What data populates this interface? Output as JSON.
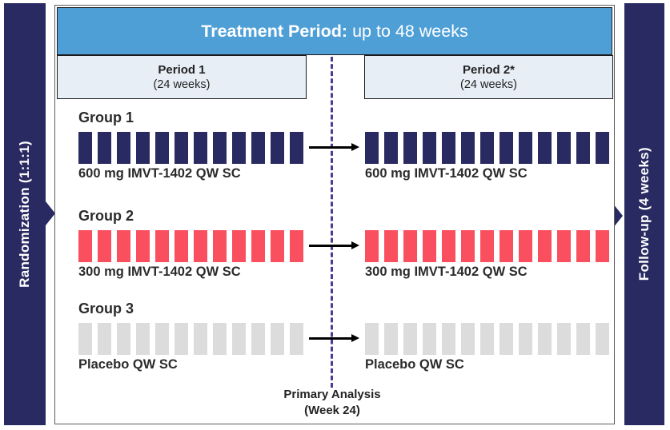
{
  "header": {
    "label_bold": "Treatment Period:",
    "label_rest": "up to 48 weeks"
  },
  "left_bar": {
    "label": "Randomization (1:1:1)"
  },
  "right_bar": {
    "label": "Follow-up (4 weeks)"
  },
  "periods": [
    {
      "name": "Period 1",
      "duration": "(24 weeks)"
    },
    {
      "name": "Period 2*",
      "duration": "(24 weeks)"
    }
  ],
  "groups": [
    {
      "name": "Group 1",
      "tick_color": "#2A2A62",
      "period1": {
        "ticks": 12,
        "label": "600 mg IMVT-1402 QW SC"
      },
      "period2": {
        "ticks": 13,
        "label": "600 mg IMVT-1402 QW SC"
      }
    },
    {
      "name": "Group 2",
      "tick_color": "#FA4F5F",
      "period1": {
        "ticks": 12,
        "label": "300 mg IMVT-1402 QW SC"
      },
      "period2": {
        "ticks": 13,
        "label": "300 mg IMVT-1402 QW SC"
      }
    },
    {
      "name": "Group 3",
      "tick_color": "#DCDCDC",
      "period1": {
        "ticks": 12,
        "label": "Placebo QW SC"
      },
      "period2": {
        "ticks": 13,
        "label": "Placebo QW SC"
      }
    }
  ],
  "primary_analysis": {
    "line1": "Primary Analysis",
    "line2": "(Week 24)"
  },
  "colors": {
    "navy": "#292A62",
    "red": "#FA4F5F",
    "light_gray": "#DCDCDC",
    "header_blue": "#4F9FD7",
    "period_fill": "#E8EEF6",
    "dashed_line": "#4C3C99"
  }
}
